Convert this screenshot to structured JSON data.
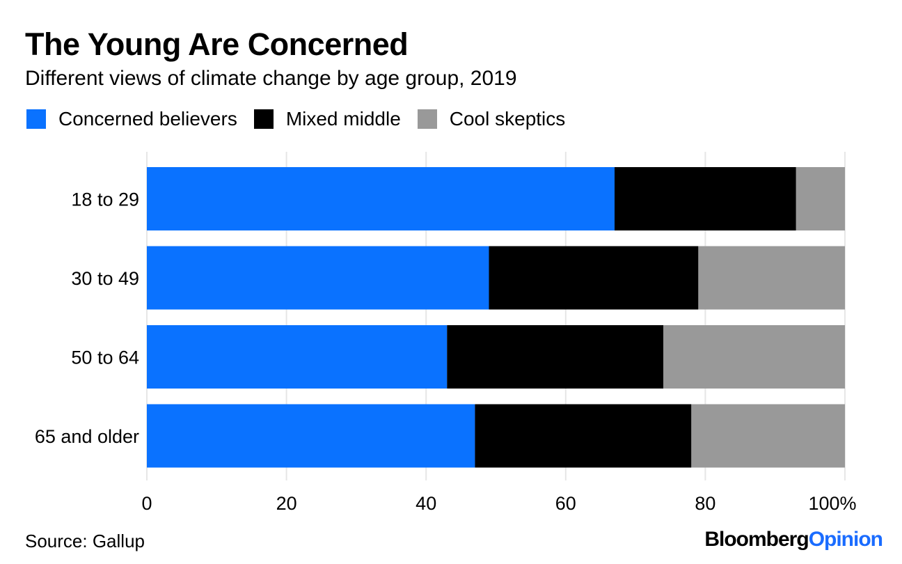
{
  "header": {
    "title": "The Young Are Concerned",
    "subtitle": "Different views of climate change by age group, 2019"
  },
  "legend": [
    {
      "label": "Concerned believers",
      "color": "#0a72ff"
    },
    {
      "label": "Mixed middle",
      "color": "#000000"
    },
    {
      "label": "Cool skeptics",
      "color": "#999999"
    }
  ],
  "footer": {
    "source": "Source: Gallup",
    "brand_part1": "Bloomberg",
    "brand_part2": "Opinion"
  },
  "chart_data": {
    "type": "bar",
    "orientation": "horizontal",
    "stacked": true,
    "categories": [
      "18 to 29",
      "30 to 49",
      "50 to 64",
      "65 and older"
    ],
    "series": [
      {
        "name": "Concerned believers",
        "color": "#0a72ff",
        "values": [
          67,
          49,
          43,
          47
        ]
      },
      {
        "name": "Mixed middle",
        "color": "#000000",
        "values": [
          26,
          30,
          31,
          31
        ]
      },
      {
        "name": "Cool skeptics",
        "color": "#999999",
        "values": [
          7,
          21,
          26,
          22
        ]
      }
    ],
    "xlim": [
      0,
      100
    ],
    "xticks": [
      0,
      20,
      40,
      60,
      80,
      100
    ],
    "xtick_labels": [
      "0",
      "20",
      "40",
      "60",
      "80",
      "100%"
    ],
    "title": "The Young Are Concerned",
    "subtitle": "Different views of climate change by age group, 2019",
    "grid": "vertical",
    "legend_position": "top-left"
  }
}
